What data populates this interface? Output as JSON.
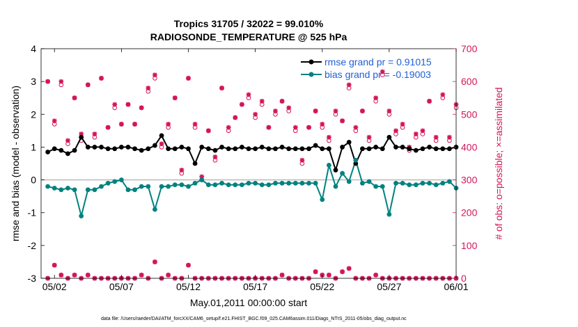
{
  "title_line1": "Tropics 31705 / 32022 = 99.010%",
  "title_line2": "RADIOSONDE_TEMPERATURE @ 525 hPa",
  "footer": "data file: /Users/raeder/DAI/ATM_forcXX/CAM6_setup/f.e21.FHIST_BGC.f09_025.CAM6assim.011/Diags_NTrS_2011-05/obs_diag_output.nc",
  "colors": {
    "rmse": "#000000",
    "bias": "#00827f",
    "obs": "#d4145a",
    "legend_text": "#1f5fd6",
    "zero_line": "#aaaaaa"
  },
  "chart_data": {
    "type": "line",
    "xlabel": "May.01,2011 00:00:00 start",
    "ylabel_left": "rmse and bias (model - observation)",
    "ylabel_right": "# of obs: o=possible; ×=assimilated",
    "xlim": [
      1.0,
      32.0
    ],
    "ylim_left": [
      -3,
      4
    ],
    "ylim_right": [
      0,
      700
    ],
    "x_ticks": [
      2,
      7,
      12,
      17,
      22,
      27,
      32
    ],
    "x_tick_labels": [
      "05/02",
      "05/07",
      "05/12",
      "05/17",
      "05/22",
      "05/27",
      "06/01"
    ],
    "y_ticks_left": [
      -3,
      -2,
      -1,
      0,
      1,
      2,
      3,
      4
    ],
    "y_tick_labels_left": [
      "-3",
      "-2",
      "-1",
      "0",
      "1",
      "2",
      "3",
      "4"
    ],
    "y_ticks_right": [
      0,
      100,
      200,
      300,
      400,
      500,
      600,
      700
    ],
    "y_tick_labels_right": [
      "0",
      "100",
      "200",
      "300",
      "400",
      "500",
      "600",
      "700"
    ],
    "legend": [
      {
        "name": "rmse",
        "label": "rmse grand pr = 0.91015"
      },
      {
        "name": "bias",
        "label": "bias grand pr = -0.19003"
      }
    ],
    "x": [
      1.5,
      2,
      2.5,
      3,
      3.5,
      4,
      4.5,
      5,
      5.5,
      6,
      6.5,
      7,
      7.5,
      8,
      8.5,
      9,
      9.5,
      10,
      10.5,
      11,
      11.5,
      12,
      12.5,
      13,
      13.5,
      14,
      14.5,
      15,
      15.5,
      16,
      16.5,
      17,
      17.5,
      18,
      18.5,
      19,
      19.5,
      20,
      20.5,
      21,
      21.5,
      22,
      22.5,
      23,
      23.5,
      24,
      24.5,
      25,
      25.5,
      26,
      26.5,
      27,
      27.5,
      28,
      28.5,
      29,
      29.5,
      30,
      30.5,
      31,
      31.5,
      32
    ],
    "series": [
      {
        "name": "rmse",
        "values": [
          0.85,
          0.95,
          0.9,
          0.8,
          0.9,
          1.3,
          1.0,
          1.0,
          1.0,
          0.95,
          0.95,
          1.0,
          1.0,
          0.95,
          0.9,
          0.95,
          1.05,
          1.35,
          0.95,
          0.95,
          1.0,
          0.95,
          0.5,
          1.0,
          0.95,
          0.9,
          1.0,
          0.95,
          0.95,
          1.0,
          0.95,
          0.95,
          1.0,
          0.95,
          0.95,
          1.0,
          0.95,
          0.95,
          0.95,
          0.95,
          1.05,
          0.95,
          0.95,
          0.3,
          1.0,
          1.15,
          0.5,
          0.95,
          0.95,
          1.0,
          0.95,
          1.3,
          1.0,
          1.0,
          0.95,
          0.9,
          0.95,
          1.0,
          0.95,
          0.95,
          0.95,
          1.0
        ]
      },
      {
        "name": "bias",
        "values": [
          -0.2,
          -0.25,
          -0.3,
          -0.25,
          -0.3,
          -1.1,
          -0.3,
          -0.3,
          -0.2,
          -0.1,
          -0.05,
          0.0,
          -0.3,
          -0.3,
          -0.2,
          -0.2,
          -0.9,
          -0.2,
          -0.2,
          -0.15,
          -0.15,
          -0.2,
          -0.1,
          0.0,
          -0.15,
          -0.15,
          -0.1,
          -0.15,
          -0.15,
          -0.15,
          -0.1,
          -0.1,
          -0.15,
          -0.15,
          -0.1,
          -0.1,
          -0.1,
          -0.1,
          -0.1,
          -0.1,
          -0.1,
          -0.6,
          0.45,
          -0.2,
          0.2,
          -0.05,
          0.6,
          -0.1,
          -0.05,
          -0.2,
          -0.2,
          -1.05,
          -0.1,
          -0.1,
          -0.15,
          -0.15,
          -0.1,
          -0.1,
          -0.15,
          -0.1,
          -0.05,
          -0.25
        ]
      },
      {
        "name": "obs_possible",
        "values": [
          600,
          470,
          590,
          410,
          550,
          420,
          590,
          430,
          610,
          460,
          520,
          470,
          530,
          470,
          520,
          570,
          610,
          400,
          460,
          550,
          320,
          610,
          460,
          300,
          450,
          360,
          580,
          450,
          490,
          530,
          550,
          490,
          530,
          460,
          500,
          540,
          510,
          450,
          350,
          460,
          510,
          460,
          420,
          500,
          480,
          580,
          450,
          510,
          420,
          540,
          620,
          500,
          440,
          460,
          390,
          430,
          440,
          540,
          420,
          550,
          420,
          520
        ]
      },
      {
        "name": "obs_assimilated",
        "values": [
          600,
          480,
          600,
          420,
          550,
          440,
          590,
          440,
          610,
          460,
          530,
          470,
          530,
          470,
          520,
          580,
          620,
          410,
          470,
          550,
          330,
          610,
          470,
          310,
          450,
          370,
          580,
          460,
          490,
          530,
          560,
          500,
          540,
          460,
          510,
          540,
          520,
          460,
          360,
          460,
          510,
          470,
          430,
          510,
          480,
          590,
          460,
          510,
          430,
          550,
          630,
          510,
          450,
          470,
          400,
          440,
          450,
          540,
          430,
          560,
          430,
          530
        ]
      },
      {
        "name": "obs_low_possible",
        "values": [
          0,
          40,
          10,
          0,
          10,
          0,
          10,
          0,
          0,
          0,
          0,
          0,
          0,
          0,
          10,
          0,
          50,
          0,
          10,
          0,
          0,
          40,
          0,
          0,
          0,
          0,
          0,
          0,
          0,
          0,
          0,
          0,
          0,
          0,
          0,
          10,
          0,
          0,
          0,
          0,
          20,
          10,
          10,
          0,
          20,
          30,
          0,
          0,
          0,
          10,
          0,
          0,
          0,
          0,
          0,
          0,
          0,
          0,
          0,
          0,
          0,
          0
        ]
      },
      {
        "name": "obs_low_assimilated",
        "values": [
          0,
          40,
          10,
          0,
          10,
          0,
          10,
          0,
          0,
          0,
          0,
          0,
          0,
          0,
          10,
          0,
          50,
          0,
          10,
          0,
          0,
          40,
          0,
          0,
          0,
          0,
          0,
          0,
          0,
          0,
          0,
          0,
          0,
          0,
          0,
          10,
          0,
          0,
          0,
          0,
          20,
          10,
          10,
          0,
          20,
          30,
          0,
          0,
          0,
          10,
          0,
          0,
          0,
          0,
          0,
          0,
          0,
          0,
          0,
          0,
          0,
          0
        ]
      }
    ]
  }
}
